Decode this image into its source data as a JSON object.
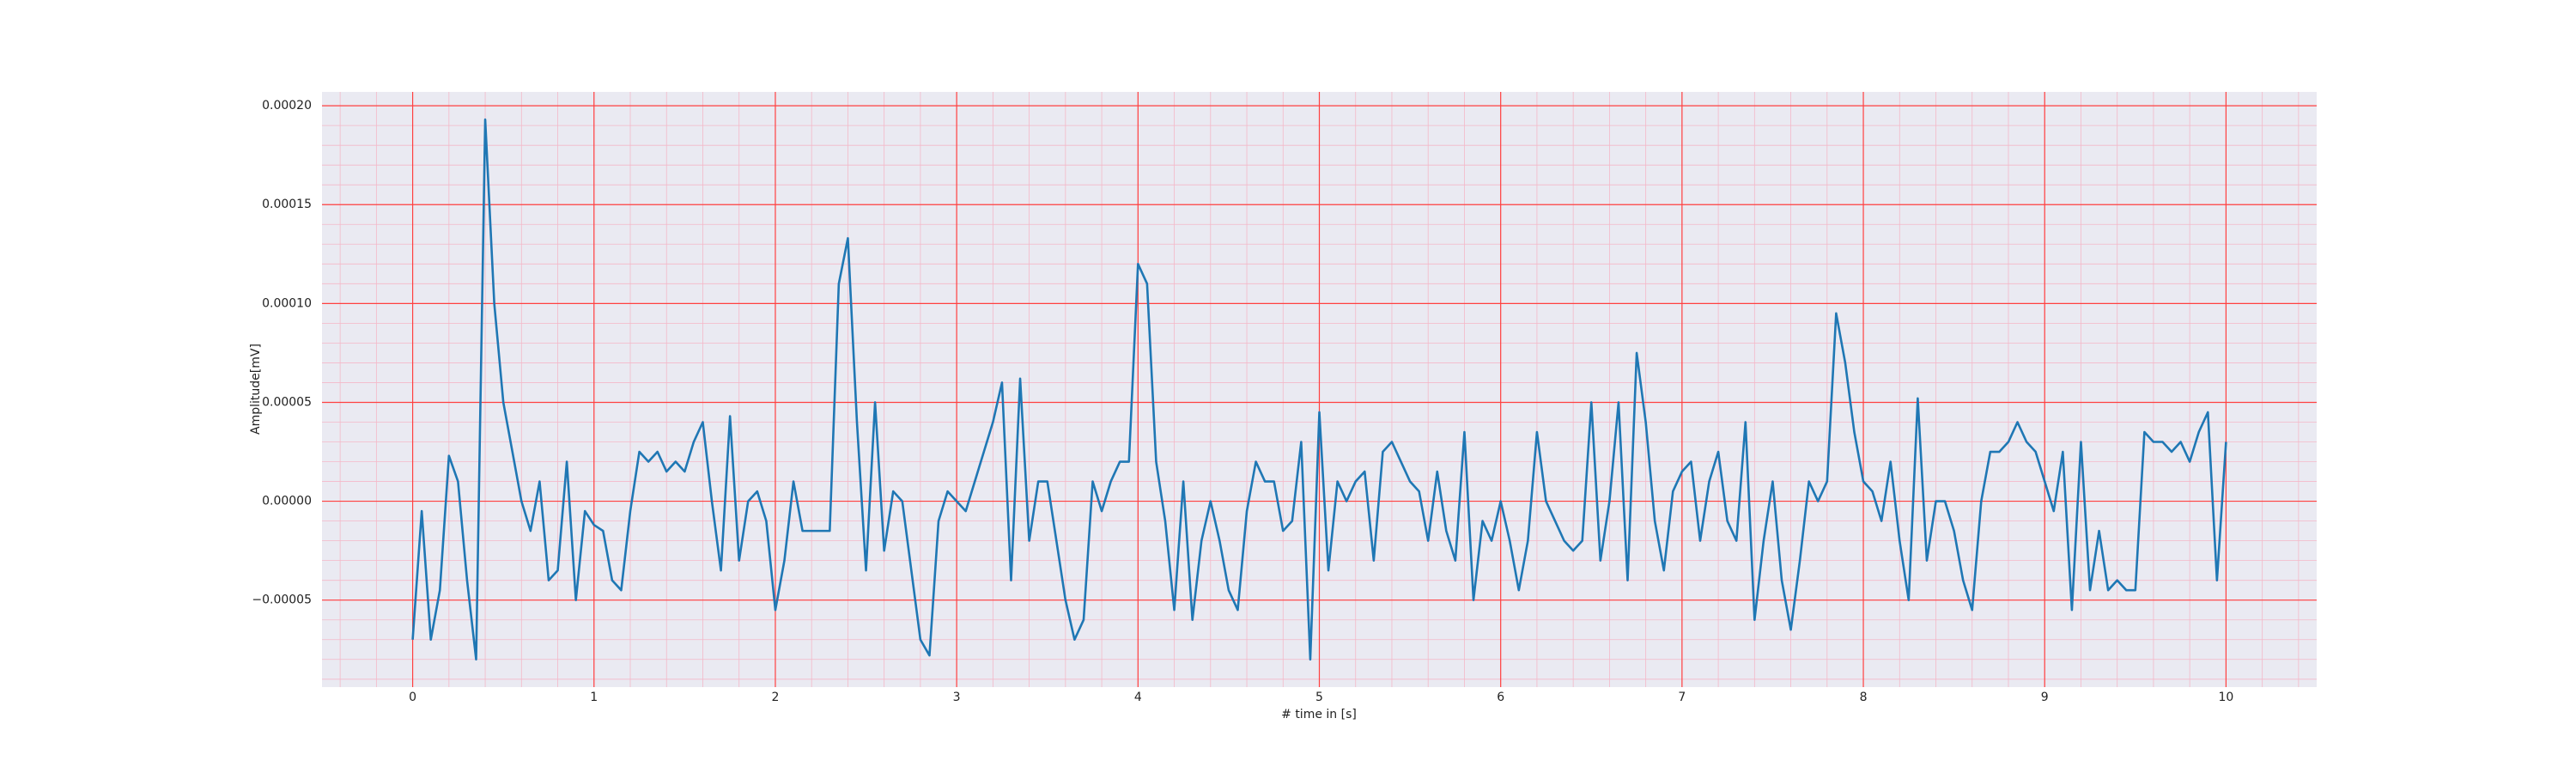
{
  "chart_data": {
    "type": "line",
    "xlabel": "# time in [s]",
    "ylabel": "Amplitude[mV]",
    "xlim": [
      -0.5,
      10.5
    ],
    "xticks": [
      0,
      1,
      2,
      3,
      4,
      5,
      6,
      7,
      8,
      9,
      10
    ],
    "ylim": [
      -9.4e-05,
      0.000207
    ],
    "yticks": [
      {
        "value": -5e-05,
        "label": "−0.00005"
      },
      {
        "value": 0,
        "label": "0.00000"
      },
      {
        "value": 5e-05,
        "label": "0.00005"
      },
      {
        "value": 0.0001,
        "label": "0.00010"
      },
      {
        "value": 0.00015,
        "label": "0.00015"
      },
      {
        "value": 0.0002,
        "label": "0.00020"
      }
    ],
    "grid": true,
    "grid_color": "#ff4040",
    "minor_grid": true,
    "minor_grid_color": "#f4b8c8",
    "background": "#eaeaf2",
    "x": [
      0,
      0.05,
      0.1,
      0.15,
      0.2,
      0.25,
      0.3,
      0.35,
      0.4,
      0.45,
      0.5,
      0.55,
      0.6,
      0.65,
      0.7,
      0.75,
      0.8,
      0.85,
      0.9,
      0.95,
      1,
      1.05,
      1.1,
      1.15,
      1.2,
      1.25,
      1.3,
      1.35,
      1.4,
      1.45,
      1.5,
      1.55,
      1.6,
      1.65,
      1.7,
      1.75,
      1.8,
      1.85,
      1.9,
      1.95,
      2,
      2.05,
      2.1,
      2.15,
      2.2,
      2.25,
      2.3,
      2.35,
      2.4,
      2.45,
      2.5,
      2.55,
      2.6,
      2.65,
      2.7,
      2.75,
      2.8,
      2.85,
      2.9,
      2.95,
      3,
      3.05,
      3.1,
      3.15,
      3.2,
      3.25,
      3.3,
      3.35,
      3.4,
      3.45,
      3.5,
      3.55,
      3.6,
      3.65,
      3.7,
      3.75,
      3.8,
      3.85,
      3.9,
      3.95,
      4,
      4.05,
      4.1,
      4.15,
      4.2,
      4.25,
      4.3,
      4.35,
      4.4,
      4.45,
      4.5,
      4.55,
      4.6,
      4.65,
      4.7,
      4.75,
      4.8,
      4.85,
      4.9,
      4.95,
      5,
      5.05,
      5.1,
      5.15,
      5.2,
      5.25,
      5.3,
      5.35,
      5.4,
      5.45,
      5.5,
      5.55,
      5.6,
      5.65,
      5.7,
      5.75,
      5.8,
      5.85,
      5.9,
      5.95,
      6,
      6.05,
      6.1,
      6.15,
      6.2,
      6.25,
      6.3,
      6.35,
      6.4,
      6.45,
      6.5,
      6.55,
      6.6,
      6.65,
      6.7,
      6.75,
      6.8,
      6.85,
      6.9,
      6.95,
      7,
      7.05,
      7.1,
      7.15,
      7.2,
      7.25,
      7.3,
      7.35,
      7.4,
      7.45,
      7.5,
      7.55,
      7.6,
      7.65,
      7.7,
      7.75,
      7.8,
      7.85,
      7.9,
      7.95,
      8,
      8.05,
      8.1,
      8.15,
      8.2,
      8.25,
      8.3,
      8.35,
      8.4,
      8.45,
      8.5,
      8.55,
      8.6,
      8.65,
      8.7,
      8.75,
      8.8,
      8.85,
      8.9,
      8.95,
      9,
      9.05,
      9.1,
      9.15,
      9.2,
      9.25,
      9.3,
      9.35,
      9.4,
      9.45,
      9.5,
      9.55,
      9.6,
      9.65,
      9.7,
      9.75,
      9.8,
      9.85,
      9.9,
      9.95,
      10
    ],
    "series": [
      {
        "color": "#1f77b4",
        "values": [
          -7e-05,
          -5e-06,
          -7e-05,
          -4.5e-05,
          2.3e-05,
          1e-05,
          -4e-05,
          -8e-05,
          0.000193,
          0.0001,
          5e-05,
          2.5e-05,
          0,
          -1.5e-05,
          1e-05,
          -4e-05,
          -3.5e-05,
          2e-05,
          -5e-05,
          -5e-06,
          -1.2e-05,
          -1.5e-05,
          -4e-05,
          -4.5e-05,
          -5e-06,
          2.5e-05,
          2e-05,
          2.5e-05,
          1.5e-05,
          2e-05,
          1.5e-05,
          3e-05,
          4e-05,
          0,
          -3.5e-05,
          4.3e-05,
          -3e-05,
          0,
          5e-06,
          -1e-05,
          -5.5e-05,
          -3e-05,
          1e-05,
          -1.5e-05,
          -1.5e-05,
          -1.5e-05,
          -1.5e-05,
          0.00011,
          0.000133,
          4e-05,
          -3.5e-05,
          5e-05,
          -2.5e-05,
          5e-06,
          0,
          -3.5e-05,
          -7e-05,
          -7.8e-05,
          -1e-05,
          5e-06,
          0,
          -5e-06,
          1e-05,
          2.5e-05,
          4e-05,
          6e-05,
          -4e-05,
          6.2e-05,
          -2e-05,
          1e-05,
          1e-05,
          -2e-05,
          -5e-05,
          -7e-05,
          -6e-05,
          1e-05,
          -5e-06,
          1e-05,
          2e-05,
          2e-05,
          0.00012,
          0.00011,
          2e-05,
          -1e-05,
          -5.5e-05,
          1e-05,
          -6e-05,
          -2e-05,
          0,
          -2e-05,
          -4.5e-05,
          -5.5e-05,
          -5e-06,
          2e-05,
          1e-05,
          1e-05,
          -1.5e-05,
          -1e-05,
          3e-05,
          -8e-05,
          4.5e-05,
          -3.5e-05,
          1e-05,
          0,
          1e-05,
          1.5e-05,
          -3e-05,
          2.5e-05,
          3e-05,
          2e-05,
          1e-05,
          5e-06,
          -2e-05,
          1.5e-05,
          -1.5e-05,
          -3e-05,
          3.5e-05,
          -5e-05,
          -1e-05,
          -2e-05,
          0,
          -2e-05,
          -4.5e-05,
          -2e-05,
          3.5e-05,
          0,
          -1e-05,
          -2e-05,
          -2.5e-05,
          -2e-05,
          5e-05,
          -3e-05,
          0,
          5e-05,
          -4e-05,
          7.5e-05,
          4e-05,
          -1e-05,
          -3.5e-05,
          5e-06,
          1.5e-05,
          2e-05,
          -2e-05,
          1e-05,
          2.5e-05,
          -1e-05,
          -2e-05,
          4e-05,
          -6e-05,
          -2e-05,
          1e-05,
          -4e-05,
          -6.5e-05,
          -3e-05,
          1e-05,
          0,
          1e-05,
          9.5e-05,
          7e-05,
          3.5e-05,
          1e-05,
          5e-06,
          -1e-05,
          2e-05,
          -2e-05,
          -5e-05,
          5.2e-05,
          -3e-05,
          0,
          0,
          -1.5e-05,
          -4e-05,
          -5.5e-05,
          0,
          2.5e-05,
          2.5e-05,
          3e-05,
          4e-05,
          3e-05,
          2.5e-05,
          1e-05,
          -5e-06,
          2.5e-05,
          -5.5e-05,
          3e-05,
          -4.5e-05,
          -1.5e-05,
          -4.5e-05,
          -4e-05,
          -4.5e-05,
          -4.5e-05,
          3.5e-05,
          3e-05,
          3e-05,
          2.5e-05,
          3e-05,
          2e-05,
          3.5e-05,
          4.5e-05,
          -4e-05,
          3e-05
        ]
      }
    ]
  }
}
